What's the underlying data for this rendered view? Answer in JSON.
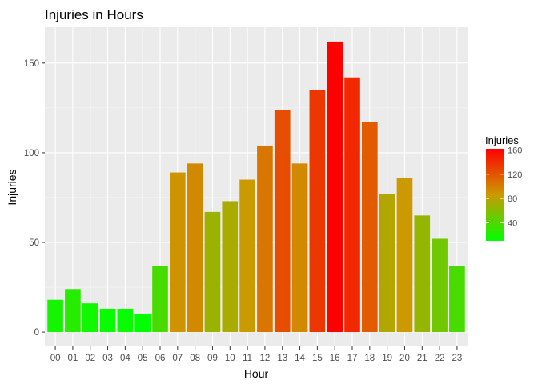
{
  "chart_data": {
    "type": "bar",
    "title": "Injuries in Hours",
    "xlabel": "Hour",
    "ylabel": "Injuries",
    "categories": [
      "00",
      "01",
      "02",
      "03",
      "04",
      "05",
      "06",
      "07",
      "08",
      "09",
      "10",
      "11",
      "12",
      "13",
      "14",
      "15",
      "16",
      "17",
      "18",
      "19",
      "20",
      "21",
      "22",
      "23"
    ],
    "values": [
      18,
      24,
      16,
      13,
      13,
      10,
      37,
      89,
      94,
      67,
      73,
      85,
      104,
      124,
      94,
      135,
      162,
      142,
      117,
      77,
      86,
      65,
      52,
      37
    ],
    "ylim": [
      -8,
      170
    ],
    "yticks": [
      0,
      50,
      100,
      150
    ],
    "grid": true,
    "legend": {
      "title": "Injuries",
      "position": "right",
      "ticks": [
        40,
        80,
        120,
        160
      ],
      "range": [
        10,
        162
      ],
      "low_color": "#00ff00",
      "high_color": "#ff0000"
    },
    "panel_background": "#ebebeb"
  }
}
